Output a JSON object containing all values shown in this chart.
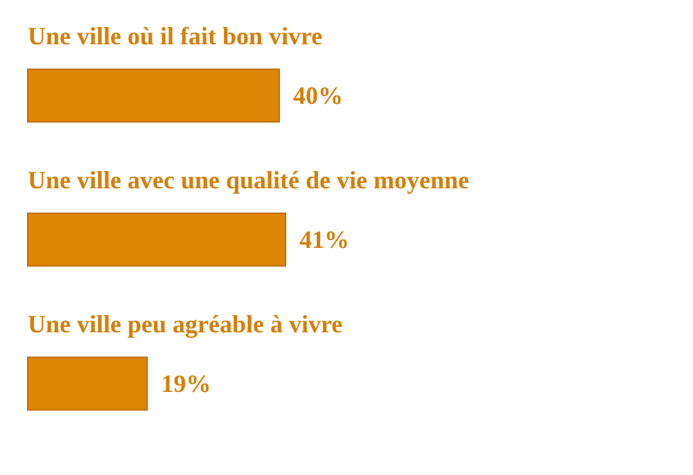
{
  "chart_data": {
    "type": "bar",
    "orientation": "horizontal",
    "categories": [
      "Une ville où il fait bon vivre",
      "Une ville avec une qualité de vie moyenne",
      "Une ville peu agréable à vivre"
    ],
    "values": [
      40,
      41,
      19
    ],
    "value_labels": [
      "40%",
      "41%",
      "19%"
    ],
    "color": "#de8406"
  }
}
